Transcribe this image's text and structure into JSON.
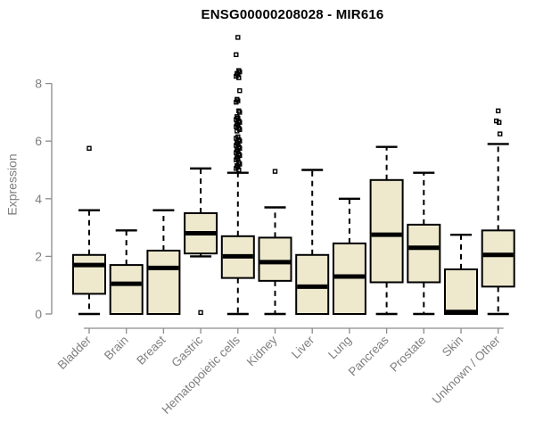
{
  "title": "ENSG00000208028 - MIR616",
  "colors": {
    "box_fill": "#EEE8CD",
    "box_stroke": "#000000",
    "median": "#000000",
    "whisker": "#000000",
    "outlier": "#000000",
    "axis": "#8C8C8C",
    "tick_label": "#7F7F7F",
    "title": "#000000",
    "background": "#FFFFFF"
  },
  "chart_data": {
    "type": "boxplot",
    "title": "ENSG00000208028 - MIR616",
    "xlabel": "",
    "ylabel": "Expression",
    "ylim": [
      0,
      9.7
    ],
    "yticks": [
      0,
      2,
      4,
      6,
      8
    ],
    "grid": false,
    "legend": false,
    "categories": [
      "Bladder",
      "Brain",
      "Breast",
      "Gastric",
      "Hematopoietic cells",
      "Kidney",
      "Liver",
      "Lung",
      "Pancreas",
      "Prostate",
      "Skin",
      "Unknown / Other"
    ],
    "boxes": [
      {
        "category": "Bladder",
        "whisker_low": 0,
        "q1": 0.7,
        "median": 1.7,
        "q3": 2.05,
        "whisker_high": 3.6,
        "outliers": [
          5.75
        ]
      },
      {
        "category": "Brain",
        "whisker_low": 0,
        "q1": 0,
        "median": 1.05,
        "q3": 1.7,
        "whisker_high": 2.9,
        "outliers": []
      },
      {
        "category": "Breast",
        "whisker_low": 0,
        "q1": 0,
        "median": 1.6,
        "q3": 2.2,
        "whisker_high": 3.6,
        "outliers": []
      },
      {
        "category": "Gastric",
        "whisker_low": 2.0,
        "q1": 2.1,
        "median": 2.8,
        "q3": 3.5,
        "whisker_high": 5.05,
        "outliers": [
          0.05
        ]
      },
      {
        "category": "Hematopoietic cells",
        "whisker_low": 0,
        "q1": 1.25,
        "median": 2.0,
        "q3": 2.7,
        "whisker_high": 4.9,
        "outliers": [
          9.6,
          9.0,
          8.45,
          8.4,
          8.35,
          8.3,
          8.25,
          8.2,
          7.75,
          7.45,
          7.4,
          7.35,
          7.05,
          7.0,
          6.85,
          6.8,
          6.75,
          6.7,
          6.65,
          6.6,
          6.55,
          6.5,
          6.45,
          6.4,
          6.35,
          6.15,
          6.1,
          6.05,
          6.0,
          5.95,
          5.9,
          5.85,
          5.8,
          5.75,
          5.7,
          5.65,
          5.6,
          5.55,
          5.5,
          5.45,
          5.4,
          5.35,
          5.25,
          5.2,
          5.15,
          5.1,
          5.05,
          5.0
        ]
      },
      {
        "category": "Kidney",
        "whisker_low": 0,
        "q1": 1.15,
        "median": 1.8,
        "q3": 2.65,
        "whisker_high": 3.7,
        "outliers": [
          4.95
        ]
      },
      {
        "category": "Liver",
        "whisker_low": 0,
        "q1": 0,
        "median": 0.95,
        "q3": 2.05,
        "whisker_high": 5.0,
        "outliers": []
      },
      {
        "category": "Lung",
        "whisker_low": 0,
        "q1": 0,
        "median": 1.3,
        "q3": 2.45,
        "whisker_high": 4.0,
        "outliers": []
      },
      {
        "category": "Pancreas",
        "whisker_low": 0,
        "q1": 1.1,
        "median": 2.75,
        "q3": 4.65,
        "whisker_high": 5.8,
        "outliers": []
      },
      {
        "category": "Prostate",
        "whisker_low": 0,
        "q1": 1.1,
        "median": 2.3,
        "q3": 3.1,
        "whisker_high": 4.9,
        "outliers": []
      },
      {
        "category": "Skin",
        "whisker_low": 0,
        "q1": 0,
        "median": 0.07,
        "q3": 1.55,
        "whisker_high": 2.75,
        "outliers": []
      },
      {
        "category": "Unknown / Other",
        "whisker_low": 0,
        "q1": 0.95,
        "median": 2.05,
        "q3": 2.9,
        "whisker_high": 5.9,
        "outliers": [
          7.05,
          6.7,
          6.65,
          6.25
        ]
      }
    ]
  }
}
